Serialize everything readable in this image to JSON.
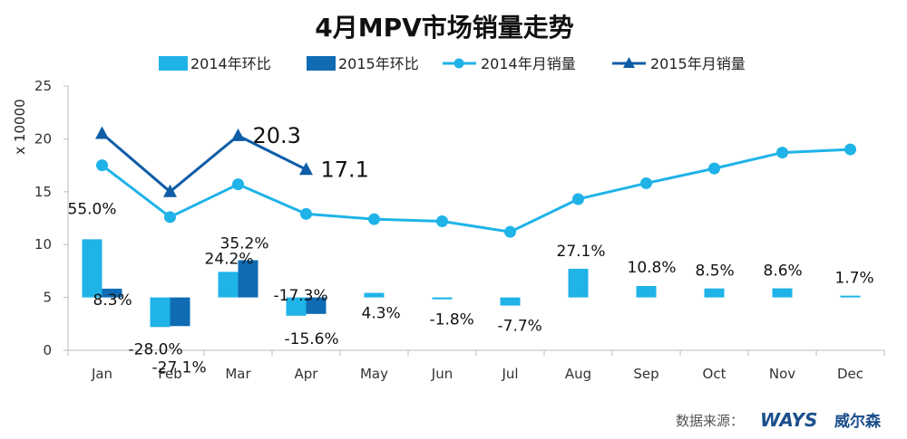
{
  "chart_data": {
    "type": "bar+line",
    "title": "4月MPV市场销量走势",
    "ylabel": "x 10000",
    "ylim": [
      0,
      25
    ],
    "yticks": [
      0,
      5,
      10,
      15,
      20,
      25
    ],
    "categories": [
      "Jan",
      "Feb",
      "Mar",
      "Apr",
      "May",
      "Jun",
      "Jul",
      "Aug",
      "Sep",
      "Oct",
      "Nov",
      "Dec"
    ],
    "bar_baseline": 5,
    "bar_series": [
      {
        "name": "2014年环比",
        "color": "#1fb3e8",
        "pct": [
          55.0,
          -28.0,
          24.2,
          -17.3,
          4.3,
          -1.8,
          -7.7,
          27.1,
          10.8,
          8.5,
          8.6,
          1.7
        ],
        "labels": [
          "55.0%",
          "-28.0%",
          "24.2%",
          "-17.3%",
          "4.3%",
          "-1.8%",
          "-7.7%",
          "27.1%",
          "10.8%",
          "8.5%",
          "8.6%",
          "1.7%"
        ]
      },
      {
        "name": "2015年环比",
        "color": "#0f6bb3",
        "pct": [
          8.3,
          -27.1,
          35.2,
          -15.6
        ],
        "labels": [
          "8.3%",
          "-27.1%",
          "35.2%",
          "-15.6%"
        ]
      }
    ],
    "line_series": [
      {
        "name": "2014年月销量",
        "color": "#1fb3e8",
        "marker": "circle",
        "values": [
          17.5,
          12.6,
          15.7,
          12.9,
          12.4,
          12.2,
          11.2,
          14.3,
          15.8,
          17.2,
          18.7,
          19.0
        ]
      },
      {
        "name": "2015年月销量",
        "color": "#0f5da6",
        "marker": "triangle",
        "values": [
          20.5,
          15.0,
          20.3,
          17.1
        ],
        "labels": [
          null,
          null,
          "20.3",
          "17.1"
        ]
      }
    ]
  },
  "footer": {
    "source_label": "数据来源：",
    "brand": "WAYS",
    "brand_cn": "威尔森"
  }
}
